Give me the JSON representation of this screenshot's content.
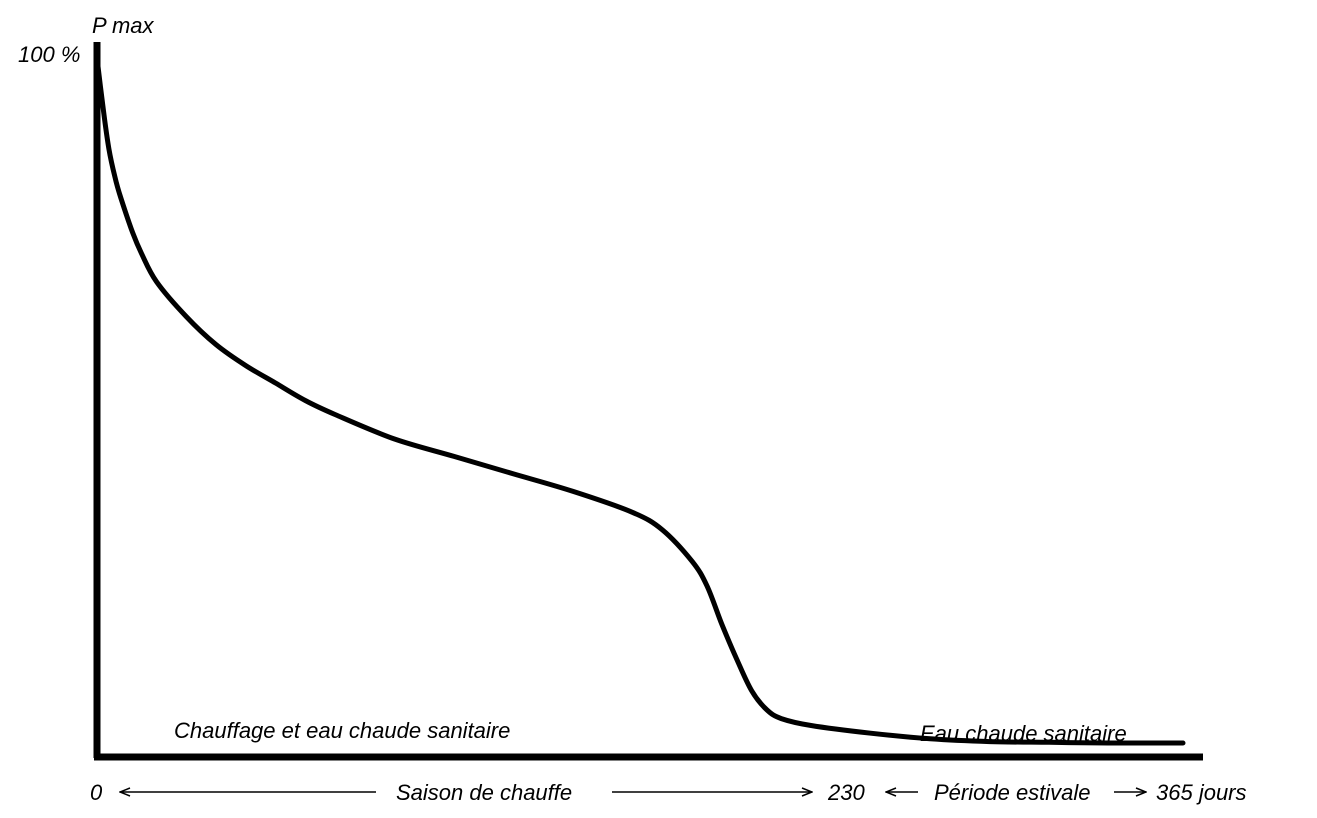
{
  "chart_data": {
    "type": "line",
    "title": "",
    "ylabel": "P max",
    "ytick_top": "100 %",
    "xlim": [
      0,
      365
    ],
    "ylim": [
      0,
      100
    ],
    "grid": false,
    "region_labels": {
      "heating": "Chauffage et eau chaude sanitaire",
      "dhw": "Eau chaude sanitaire"
    },
    "x_axis_labels": {
      "start": "0",
      "season_heating": "Saison de chauffe",
      "mid": "230",
      "season_summer": "Période estivale",
      "end": "365 jours"
    },
    "series": [
      {
        "x": [
          0,
          2,
          4,
          6,
          8,
          12,
          15,
          20,
          30,
          40,
          50,
          60,
          70,
          80,
          100,
          120,
          140,
          160,
          180,
          190,
          200,
          205,
          210,
          215,
          220,
          225,
          230,
          240,
          260,
          280,
          300,
          320,
          340,
          365
        ],
        "y": [
          100,
          93,
          87,
          83,
          80,
          75,
          72,
          68,
          63,
          59,
          56,
          53.5,
          51,
          49,
          45.5,
          43,
          40.5,
          38,
          35,
          32.5,
          28,
          24.5,
          19,
          14,
          9.5,
          6.8,
          5.5,
          4.5,
          3.4,
          2.6,
          2.2,
          2.1,
          2.0,
          2.0
        ]
      }
    ]
  },
  "colors": {
    "line": "#000000",
    "axes": "#000000",
    "background": "#ffffff"
  }
}
